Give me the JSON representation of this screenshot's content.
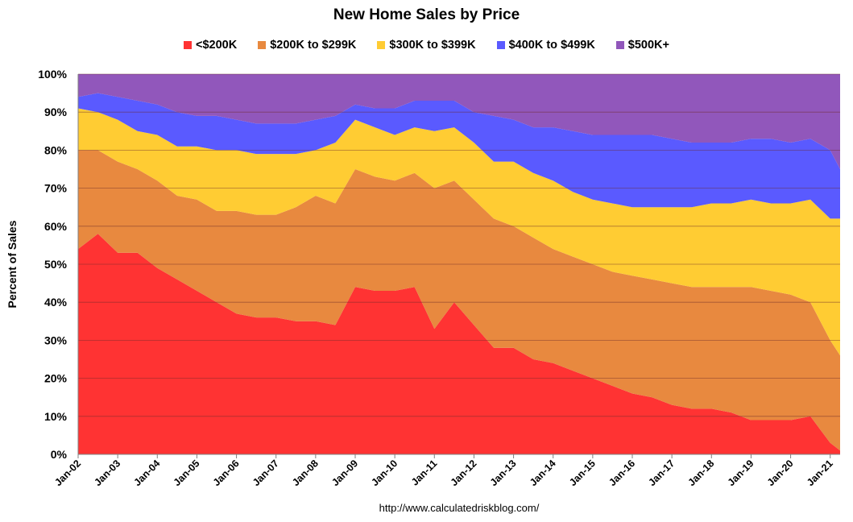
{
  "chart_data": {
    "type": "area",
    "stacking": "percent",
    "title": "New Home Sales by Price",
    "ylabel": "Percent of Sales",
    "xlabel": "",
    "source": "http://www.calculatedriskblog.com/",
    "ylim": [
      0,
      100
    ],
    "yticks": [
      "0%",
      "10%",
      "20%",
      "30%",
      "40%",
      "50%",
      "60%",
      "70%",
      "80%",
      "90%",
      "100%"
    ],
    "x_start": "2002-01",
    "x_end": "2021-04",
    "xticks": [
      "Jan-02",
      "Jan-03",
      "Jan-04",
      "Jan-05",
      "Jan-06",
      "Jan-07",
      "Jan-08",
      "Jan-09",
      "Jan-10",
      "Jan-11",
      "Jan-12",
      "Jan-13",
      "Jan-14",
      "Jan-15",
      "Jan-16",
      "Jan-17",
      "Jan-18",
      "Jan-19",
      "Jan-20",
      "Jan-21"
    ],
    "legend_position": "top",
    "grid": true,
    "x": [
      2002.0,
      2002.5,
      2003.0,
      2003.5,
      2004.0,
      2004.5,
      2005.0,
      2005.5,
      2006.0,
      2006.5,
      2007.0,
      2007.5,
      2008.0,
      2008.5,
      2009.0,
      2009.5,
      2010.0,
      2010.5,
      2011.0,
      2011.5,
      2012.0,
      2012.5,
      2013.0,
      2013.5,
      2014.0,
      2014.5,
      2015.0,
      2015.5,
      2016.0,
      2016.5,
      2017.0,
      2017.5,
      2018.0,
      2018.5,
      2019.0,
      2019.5,
      2020.0,
      2020.5,
      2021.0,
      2021.25
    ],
    "series": [
      {
        "name": "<$200K",
        "color": "#ff3333",
        "cumulative_top": [
          54,
          58,
          53,
          53,
          49,
          46,
          43,
          40,
          37,
          36,
          36,
          35,
          35,
          34,
          44,
          43,
          43,
          44,
          33,
          40,
          34,
          28,
          28,
          25,
          24,
          22,
          20,
          18,
          16,
          15,
          13,
          12,
          12,
          11,
          9,
          9,
          9,
          10,
          3,
          1
        ]
      },
      {
        "name": "$200K to $299K",
        "color": "#e8893f",
        "cumulative_top": [
          80,
          80,
          77,
          75,
          72,
          68,
          67,
          64,
          64,
          63,
          63,
          65,
          68,
          66,
          75,
          73,
          72,
          74,
          70,
          72,
          67,
          62,
          60,
          57,
          54,
          52,
          50,
          48,
          47,
          46,
          45,
          44,
          44,
          44,
          44,
          43,
          42,
          40,
          30,
          26
        ]
      },
      {
        "name": "$300K to $399K",
        "color": "#ffcc33",
        "cumulative_top": [
          91,
          90,
          88,
          85,
          84,
          81,
          81,
          80,
          80,
          79,
          79,
          79,
          80,
          82,
          88,
          86,
          84,
          86,
          85,
          86,
          82,
          77,
          77,
          74,
          72,
          69,
          67,
          66,
          65,
          65,
          65,
          65,
          66,
          66,
          67,
          66,
          66,
          67,
          62,
          62
        ]
      },
      {
        "name": "$400K to $499K",
        "color": "#5a5aff",
        "cumulative_top": [
          94,
          95,
          94,
          93,
          92,
          90,
          89,
          89,
          88,
          87,
          87,
          87,
          88,
          89,
          92,
          91,
          91,
          93,
          93,
          93,
          90,
          89,
          88,
          86,
          86,
          85,
          84,
          84,
          84,
          84,
          83,
          82,
          82,
          82,
          83,
          83,
          82,
          83,
          80,
          75
        ]
      },
      {
        "name": "$500K+",
        "color": "#9157bb",
        "cumulative_top": [
          100,
          100,
          100,
          100,
          100,
          100,
          100,
          100,
          100,
          100,
          100,
          100,
          100,
          100,
          100,
          100,
          100,
          100,
          100,
          100,
          100,
          100,
          100,
          100,
          100,
          100,
          100,
          100,
          100,
          100,
          100,
          100,
          100,
          100,
          100,
          100,
          100,
          100,
          100,
          100
        ]
      }
    ]
  }
}
